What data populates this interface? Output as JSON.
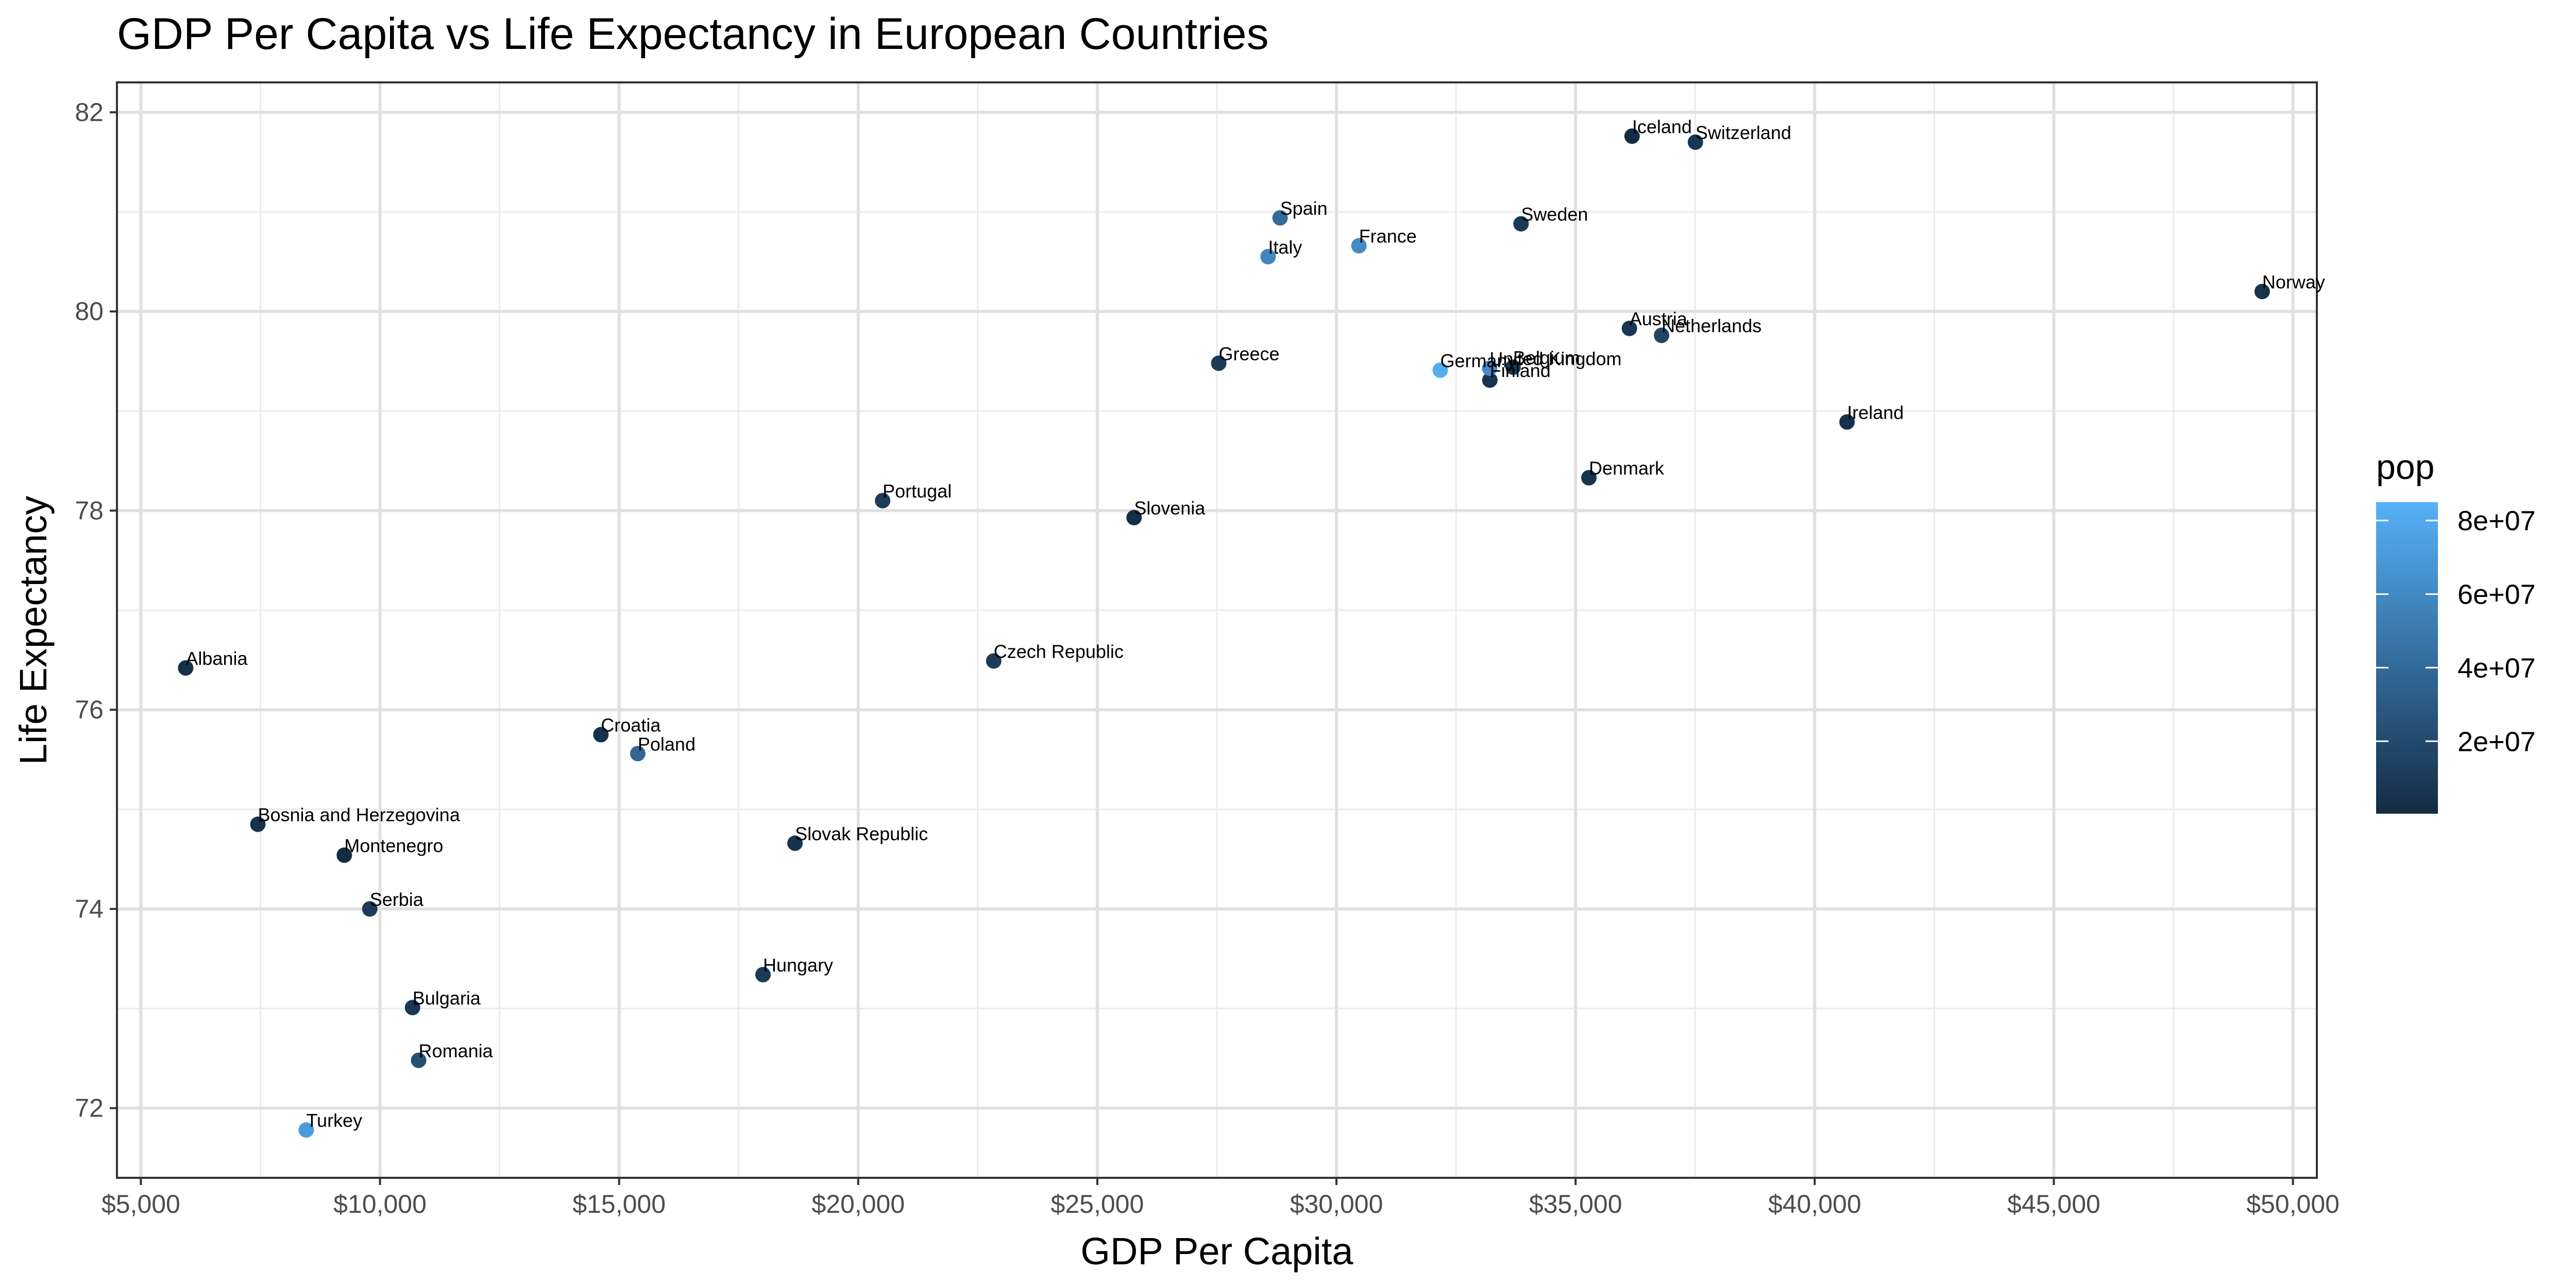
{
  "chart_data": {
    "type": "scatter",
    "title": "GDP Per Capita vs Life Expectancy in European Countries",
    "xlabel": "GDP Per Capita",
    "ylabel": "Life Expectancy",
    "xlim": [
      4500,
      50500
    ],
    "ylim": [
      71.3,
      82.3
    ],
    "xticks": [
      5000,
      10000,
      15000,
      20000,
      25000,
      30000,
      35000,
      40000,
      45000,
      50000
    ],
    "xtick_labels": [
      "$5,000",
      "$10,000",
      "$15,000",
      "$20,000",
      "$25,000",
      "$30,000",
      "$35,000",
      "$40,000",
      "$45,000",
      "$50,000"
    ],
    "yticks": [
      72,
      74,
      76,
      78,
      80,
      82
    ],
    "ytick_labels": [
      "72",
      "74",
      "76",
      "78",
      "80",
      "82"
    ],
    "grid": true,
    "legend": {
      "title": "pop",
      "placement": "right",
      "type": "colorbar",
      "labels": [
        "8e+07",
        "6e+07",
        "4e+07",
        "2e+07"
      ],
      "values": [
        80000000,
        60000000,
        40000000,
        20000000
      ],
      "range": [
        300000,
        85000000
      ],
      "color_low": "#132B43",
      "color_high": "#56B1F7"
    },
    "points": [
      {
        "label": "Albania",
        "x": 5937,
        "y": 76.42,
        "pop": 3600000
      },
      {
        "label": "Austria",
        "x": 36126,
        "y": 79.83,
        "pop": 8200000
      },
      {
        "label": "Belgium",
        "x": 33693,
        "y": 79.44,
        "pop": 10400000
      },
      {
        "label": "Bosnia and Herzegovina",
        "x": 7446,
        "y": 74.85,
        "pop": 4500000
      },
      {
        "label": "Bulgaria",
        "x": 10681,
        "y": 73.01,
        "pop": 7300000
      },
      {
        "label": "Croatia",
        "x": 14619,
        "y": 75.75,
        "pop": 4500000
      },
      {
        "label": "Czech Republic",
        "x": 22833,
        "y": 76.49,
        "pop": 10200000
      },
      {
        "label": "Denmark",
        "x": 35278,
        "y": 78.33,
        "pop": 5500000
      },
      {
        "label": "Finland",
        "x": 33207,
        "y": 79.31,
        "pop": 5200000
      },
      {
        "label": "France",
        "x": 30470,
        "y": 80.66,
        "pop": 61100000
      },
      {
        "label": "Germany",
        "x": 32170,
        "y": 79.41,
        "pop": 82400000
      },
      {
        "label": "Greece",
        "x": 27538,
        "y": 79.48,
        "pop": 10700000
      },
      {
        "label": "Hungary",
        "x": 18009,
        "y": 73.34,
        "pop": 10000000
      },
      {
        "label": "Iceland",
        "x": 36181,
        "y": 81.76,
        "pop": 300000
      },
      {
        "label": "Ireland",
        "x": 40676,
        "y": 78.89,
        "pop": 4100000
      },
      {
        "label": "Italy",
        "x": 28570,
        "y": 80.55,
        "pop": 58100000
      },
      {
        "label": "Montenegro",
        "x": 9254,
        "y": 74.54,
        "pop": 700000
      },
      {
        "label": "Netherlands",
        "x": 36798,
        "y": 79.76,
        "pop": 16600000
      },
      {
        "label": "Norway",
        "x": 49357,
        "y": 80.2,
        "pop": 4600000
      },
      {
        "label": "Poland",
        "x": 15390,
        "y": 75.56,
        "pop": 38500000
      },
      {
        "label": "Portugal",
        "x": 20510,
        "y": 78.1,
        "pop": 10600000
      },
      {
        "label": "Romania",
        "x": 10808,
        "y": 72.48,
        "pop": 22300000
      },
      {
        "label": "Serbia",
        "x": 9787,
        "y": 74.0,
        "pop": 10200000
      },
      {
        "label": "Slovak Republic",
        "x": 18678,
        "y": 74.66,
        "pop": 5400000
      },
      {
        "label": "Slovenia",
        "x": 25768,
        "y": 77.93,
        "pop": 2000000
      },
      {
        "label": "Spain",
        "x": 28821,
        "y": 80.94,
        "pop": 40400000
      },
      {
        "label": "Sweden",
        "x": 33860,
        "y": 80.88,
        "pop": 9000000
      },
      {
        "label": "Switzerland",
        "x": 37506,
        "y": 81.7,
        "pop": 7600000
      },
      {
        "label": "Turkey",
        "x": 8458,
        "y": 71.78,
        "pop": 71200000
      },
      {
        "label": "United Kingdom",
        "x": 33203,
        "y": 79.43,
        "pop": 60800000
      }
    ]
  }
}
